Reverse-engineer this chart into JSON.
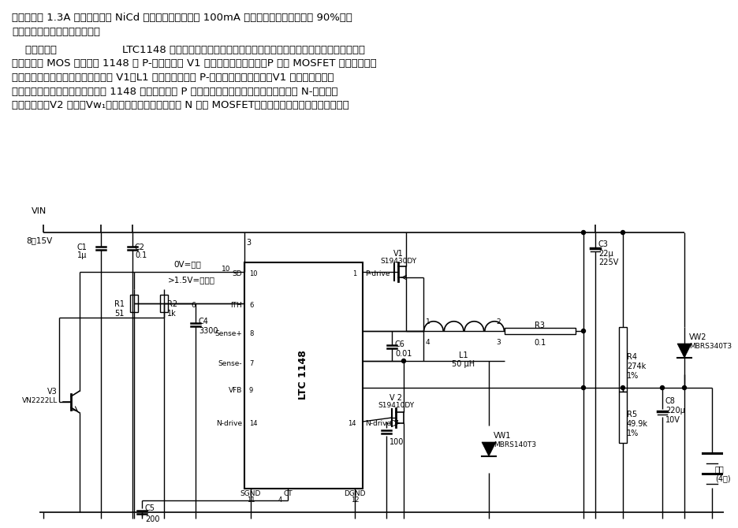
{
  "background_color": "#ffffff",
  "line_color": "#000000",
  "text_color": "#000000",
  "dpi": 100,
  "fig_width": 9.37,
  "fig_height": 6.7,
  "p1": "本电路能在 1.3A 电流下给四块 NiCd 电池快速充电，或在 100mA 涓流下充电，其效率高于 90%。此",
  "p2": "电路还可改为同时充八块电池。",
  "p3a": "    电路示于图",
  "p3b": "LTC1148 是一个同步开关调节控制器，它应用一种恒定停止时间电流型结构驱动",
  "p4": "外互补功率 MOS 场管。当 1148 的 P-驱动输出使 V1 的栅极变为低电位时，P 沟道 MOSFET 导通，电感器",
  "p5": "一边与输入电压相连接，充电电流经 V1、L1 后进入电池。在 P-驱动端处于高电位时，V1 截止，其漏极电",
  "p6": "位下降使钳位二极管正向偏置。在 1148 的内电路判定 P 通道完全截止后，二极管才导通，同时 N-驱动输出",
  "p7": "转为高电平，V2 导通，Vw₁又断路，使电感器电流流过 N 沟道 MOSFET，而不是二极管，所以效率增加。"
}
